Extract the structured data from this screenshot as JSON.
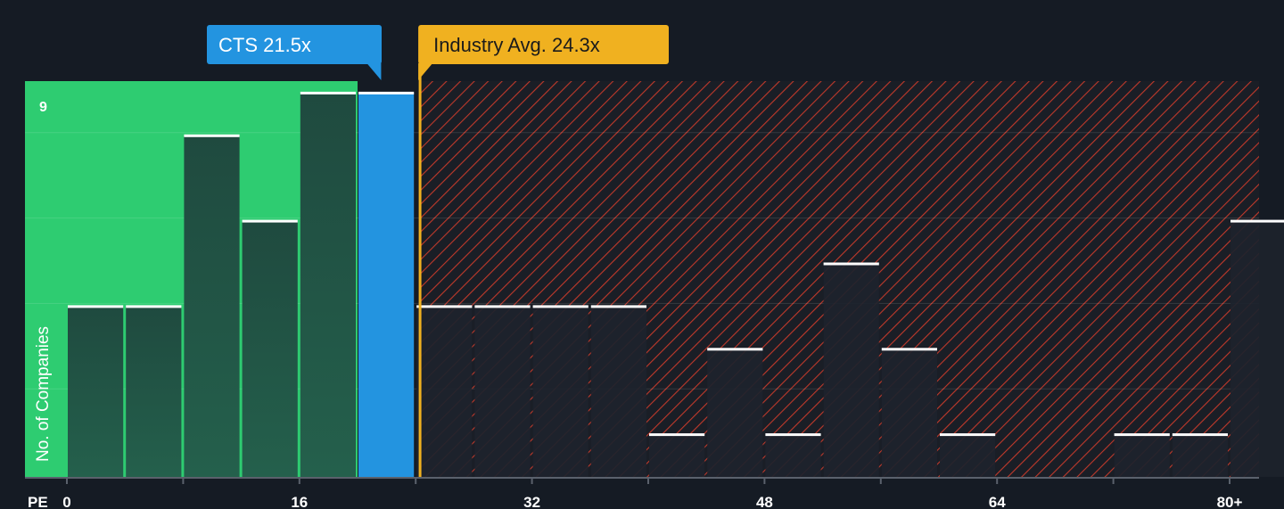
{
  "chart_data": {
    "type": "bar",
    "xlabel": "PE",
    "ylabel": "No. of Companies",
    "x_ticks": [
      {
        "value": 0,
        "label": "0"
      },
      {
        "value": 16,
        "label": "16"
      },
      {
        "value": 32,
        "label": "32"
      },
      {
        "value": 48,
        "label": "48"
      },
      {
        "value": 64,
        "label": "64"
      },
      {
        "value": 80,
        "label": "80+"
      }
    ],
    "y_ticks": [
      {
        "value": 9,
        "label": "9"
      }
    ],
    "xlim": [
      0,
      82
    ],
    "ylim": [
      0,
      9.3
    ],
    "bin_width": 4,
    "bins": [
      {
        "start": 0,
        "count": 4
      },
      {
        "start": 4,
        "count": 4
      },
      {
        "start": 8,
        "count": 8
      },
      {
        "start": 12,
        "count": 6
      },
      {
        "start": 16,
        "count": 9
      },
      {
        "start": 20,
        "count": 9,
        "highlight": true
      },
      {
        "start": 24,
        "count": 4
      },
      {
        "start": 28,
        "count": 4
      },
      {
        "start": 32,
        "count": 4
      },
      {
        "start": 36,
        "count": 4
      },
      {
        "start": 40,
        "count": 1
      },
      {
        "start": 44,
        "count": 3
      },
      {
        "start": 48,
        "count": 1
      },
      {
        "start": 52,
        "count": 5
      },
      {
        "start": 56,
        "count": 3
      },
      {
        "start": 60,
        "count": 1
      },
      {
        "start": 64,
        "count": 0
      },
      {
        "start": 68,
        "count": 0
      },
      {
        "start": 72,
        "count": 1
      },
      {
        "start": 76,
        "count": 1
      },
      {
        "start": 80,
        "count": 6
      }
    ],
    "company": {
      "label": "CTS 21.5x",
      "value": 21.5
    },
    "industry_avg": {
      "label": "Industry Avg. 24.3x",
      "value": 24.3
    },
    "colors": {
      "background": "#151b24",
      "good_zone": "#2ecc71",
      "bar_good": "#1e4a3e",
      "highlight": "#2394e0",
      "bad_zone": "#c0392b",
      "bar_bad": "#1d232d",
      "industry": "#f0b120",
      "bar_top": "#ffffff"
    }
  }
}
